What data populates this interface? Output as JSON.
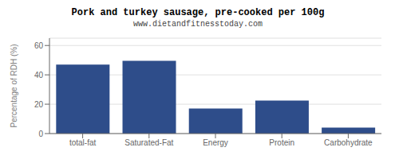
{
  "chart_data": {
    "type": "bar",
    "title": "Pork and turkey sausage, pre-cooked per 100g",
    "subtitle": "www.dietandfitnesstoday.com",
    "categories": [
      "total-fat",
      "Saturated-Fat",
      "Energy",
      "Protein",
      "Carbohydrate"
    ],
    "values": [
      47.0,
      49.5,
      17.0,
      22.5,
      4.0
    ],
    "color": "#2e4d8a",
    "ylabel": "Percentage of RDH (%)",
    "ylim": [
      0,
      65
    ],
    "yticks": [
      0,
      20,
      40,
      60
    ],
    "grid": true
  }
}
